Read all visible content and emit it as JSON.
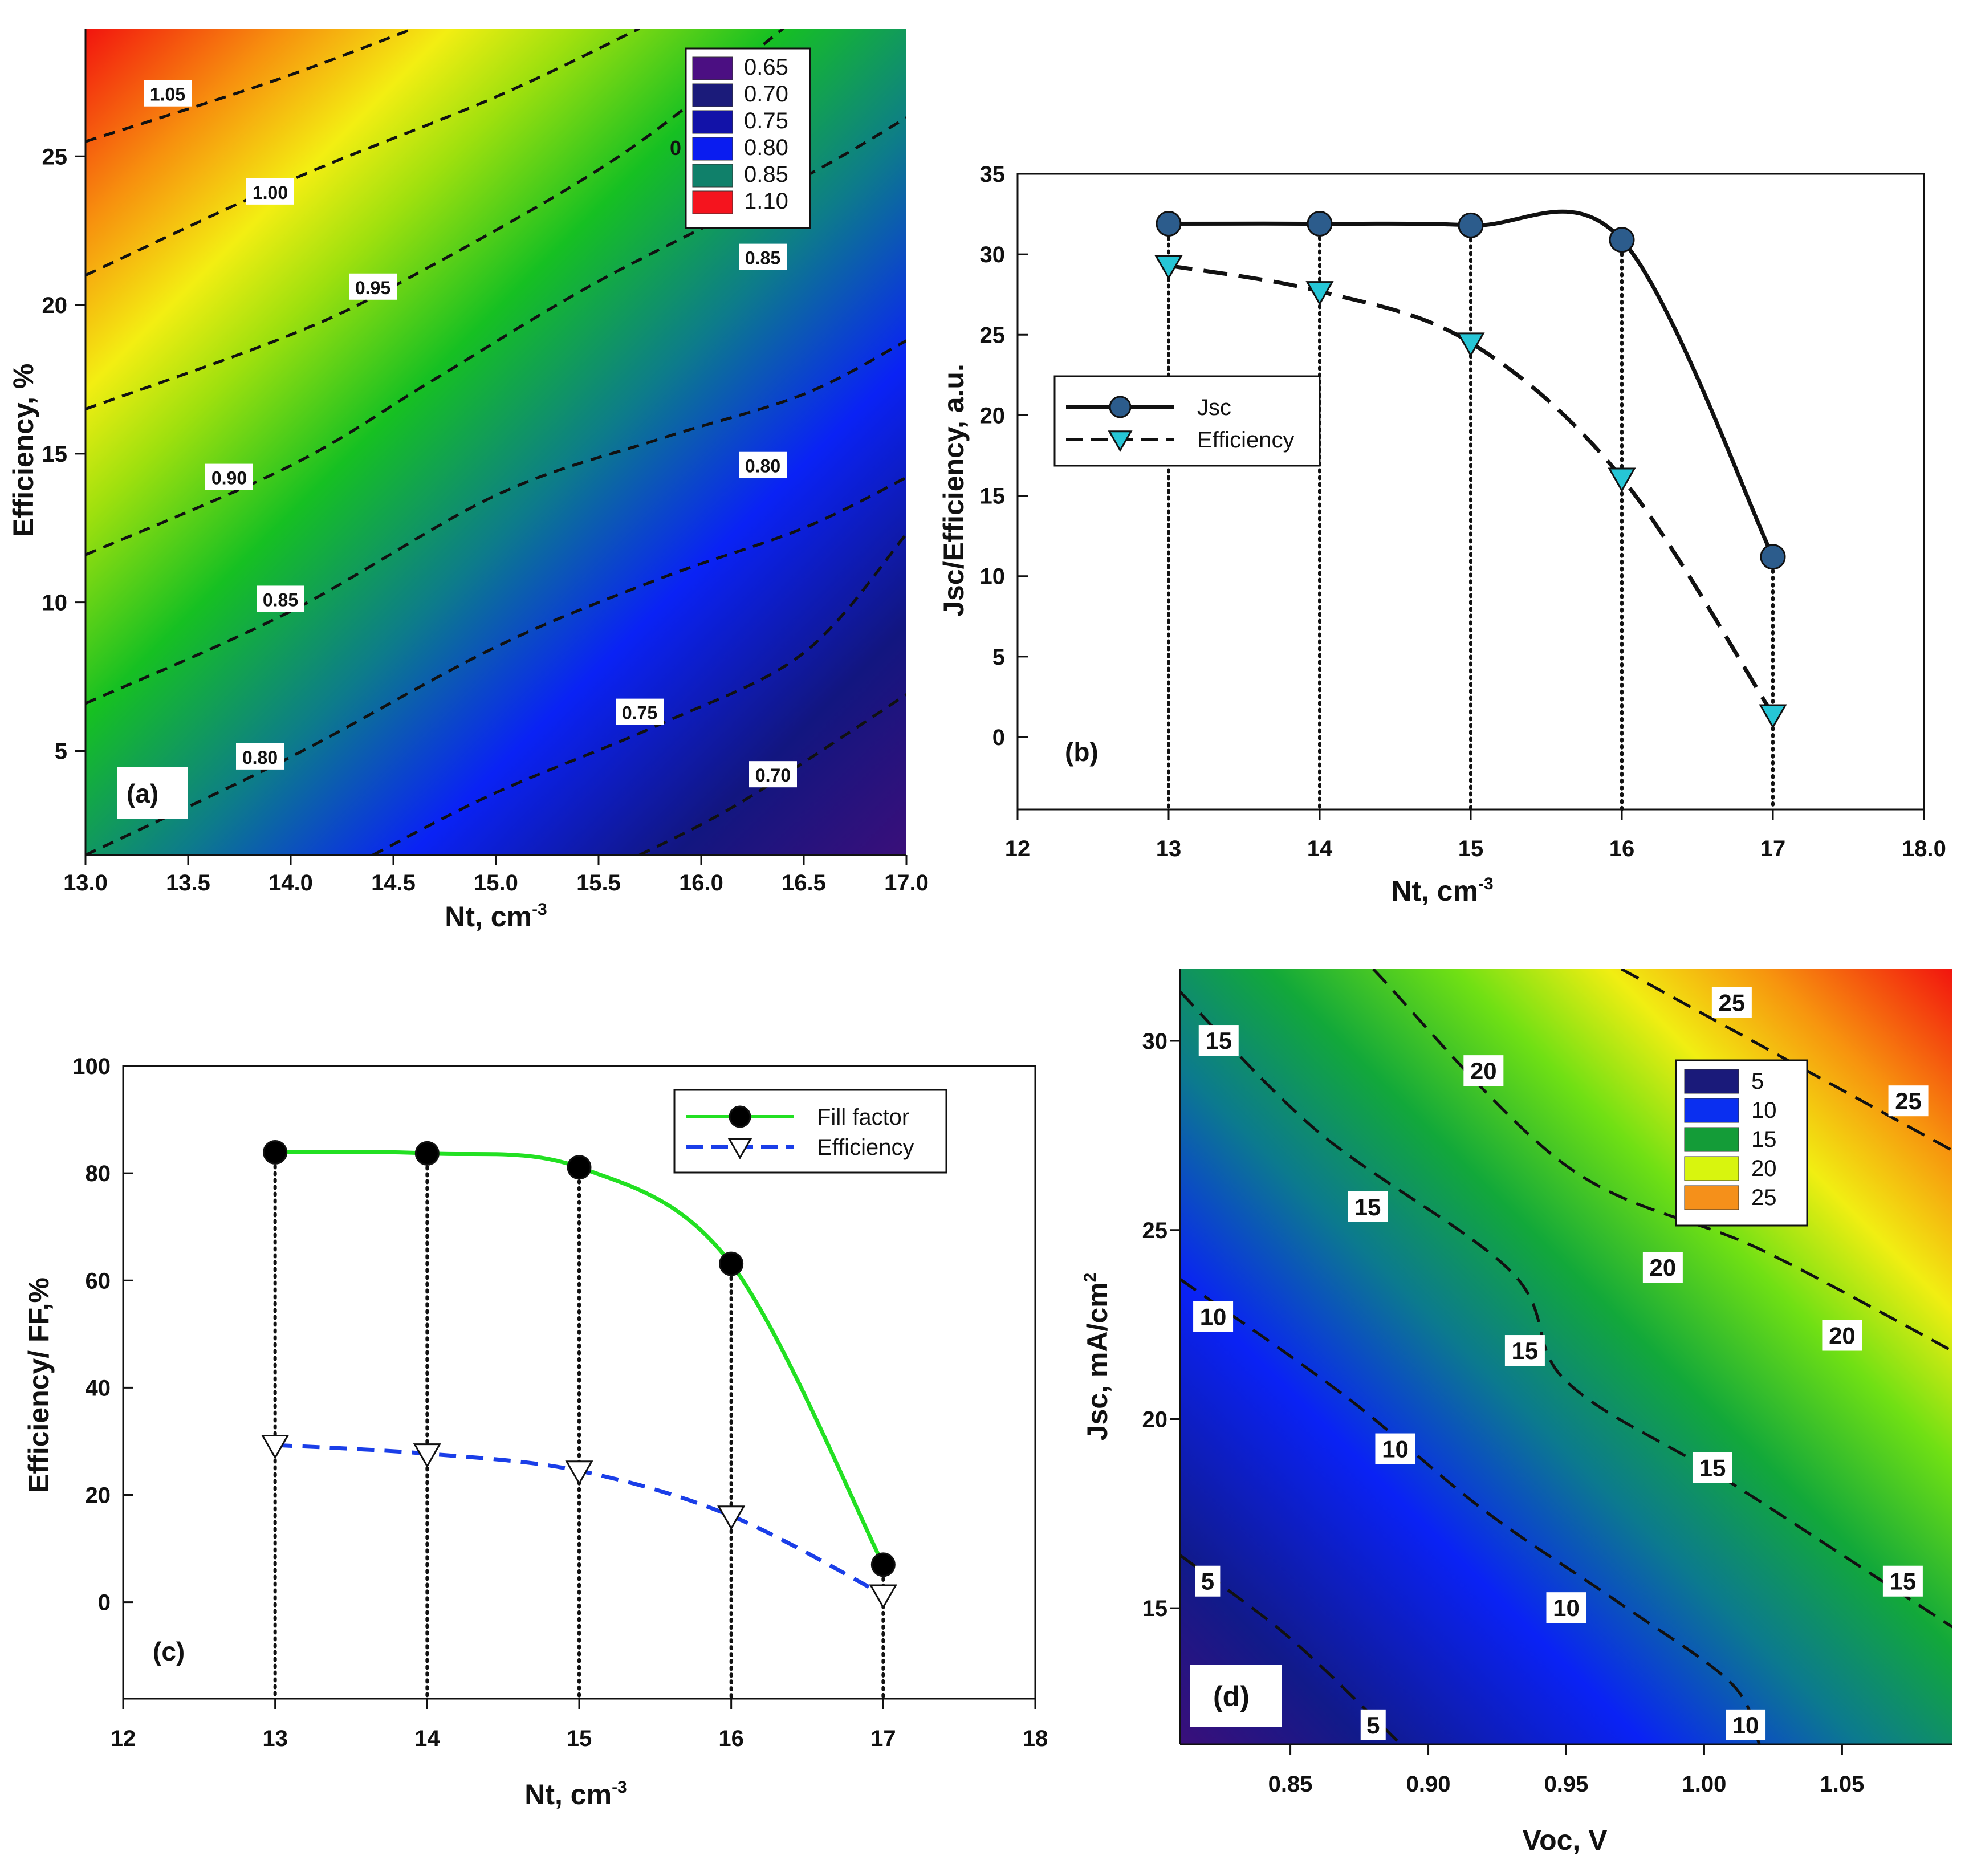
{
  "chart_data": [
    {
      "panel": "a",
      "type": "heatmap",
      "panel_label": "(a)",
      "xlabel": "Nt, cm",
      "xlabel_sup": "-3",
      "ylabel": "Efficiency, %",
      "xlim": [
        13.0,
        17.0
      ],
      "ylim": [
        1.5,
        29.3
      ],
      "xticks": [
        "13.0",
        "13.5",
        "14.0",
        "14.5",
        "15.0",
        "15.5",
        "16.0",
        "16.5",
        "17.0"
      ],
      "yticks": [
        "5",
        "10",
        "15",
        "20",
        "25"
      ],
      "legend": [
        "0.65",
        "0.70",
        "0.75",
        "0.80",
        "0.85",
        "1.10"
      ],
      "legend_colors": [
        "#4b0f82",
        "#1b1b7a",
        "#1212a8",
        "#0a1cf0",
        "#10806a",
        "#f5141e"
      ],
      "stray_label": "0",
      "contours": [
        {
          "level": "1.05",
          "points": [
            [
              13.0,
              25.5
            ],
            [
              13.9,
              27.5
            ],
            [
              14.6,
              29.3
            ]
          ]
        },
        {
          "level": "1.00",
          "points": [
            [
              13.0,
              21.0
            ],
            [
              14.0,
              24.2
            ],
            [
              15.0,
              27.0
            ],
            [
              15.7,
              29.3
            ]
          ]
        },
        {
          "level": "0.95",
          "points": [
            [
              13.0,
              16.5
            ],
            [
              14.0,
              19.0
            ],
            [
              14.6,
              21.0
            ],
            [
              15.6,
              25.0
            ],
            [
              16.4,
              29.3
            ]
          ]
        },
        {
          "level": "0.90",
          "points": [
            [
              13.0,
              11.6
            ],
            [
              14.0,
              14.6
            ],
            [
              14.7,
              17.5
            ],
            [
              15.5,
              20.8
            ],
            [
              16.5,
              24.3
            ],
            [
              17.0,
              26.3
            ]
          ]
        },
        {
          "level": "0.85",
          "points": [
            [
              13.0,
              6.6
            ],
            [
              14.0,
              9.7
            ],
            [
              15.0,
              13.6
            ],
            [
              15.8,
              15.5
            ],
            [
              16.5,
              17.0
            ],
            [
              17.0,
              18.8
            ]
          ]
        },
        {
          "level": "0.80",
          "points": [
            [
              13.0,
              1.5
            ],
            [
              14.0,
              4.8
            ],
            [
              15.0,
              8.5
            ],
            [
              15.8,
              10.8
            ],
            [
              16.5,
              12.5
            ],
            [
              17.0,
              14.2
            ]
          ]
        },
        {
          "level": "0.75",
          "points": [
            [
              14.4,
              1.5
            ],
            [
              15.0,
              3.6
            ],
            [
              15.8,
              5.9
            ],
            [
              16.5,
              8.3
            ],
            [
              17.0,
              12.3
            ]
          ]
        },
        {
          "level": "0.70",
          "points": [
            [
              15.7,
              1.5
            ],
            [
              16.2,
              3.3
            ],
            [
              17.0,
              6.9
            ]
          ]
        }
      ],
      "contour_labels": [
        {
          "text": "1.05",
          "x": 13.4,
          "y": 27.1
        },
        {
          "text": "1.00",
          "x": 13.9,
          "y": 23.8
        },
        {
          "text": "0.95",
          "x": 14.4,
          "y": 20.6
        },
        {
          "text": "0.90",
          "x": 13.7,
          "y": 14.2
        },
        {
          "text": "0.85",
          "x": 13.95,
          "y": 10.1
        },
        {
          "text": "0.80",
          "x": 13.85,
          "y": 4.8
        },
        {
          "text": "0.85",
          "x": 16.3,
          "y": 21.6
        },
        {
          "text": "0.80",
          "x": 16.3,
          "y": 14.6
        },
        {
          "text": "0.75",
          "x": 15.7,
          "y": 6.3
        },
        {
          "text": "0.70",
          "x": 16.35,
          "y": 4.2
        }
      ]
    },
    {
      "panel": "b",
      "type": "line",
      "panel_label": "(b)",
      "xlabel": "Nt, cm",
      "xlabel_sup": "-3",
      "ylabel": "Jsc/Efficiency, a.u.",
      "xlim": [
        12,
        18
      ],
      "ylim": [
        -4.5,
        35
      ],
      "xticks": [
        "12",
        "13",
        "14",
        "15",
        "16",
        "17",
        "18.0"
      ],
      "yticks": [
        "0",
        "5",
        "10",
        "15",
        "20",
        "25",
        "30",
        "35"
      ],
      "x": [
        13,
        14,
        15,
        16,
        17
      ],
      "series": [
        {
          "name": "Jsc",
          "values": [
            31.9,
            31.9,
            31.8,
            30.9,
            11.2
          ],
          "color": "#2c5c8c",
          "line": "solid",
          "marker": "circle"
        },
        {
          "name": "Efficiency",
          "values": [
            29.3,
            27.7,
            24.5,
            16.1,
            1.4
          ],
          "color": "#26c6d6",
          "line": "dashed",
          "marker": "triangle-down"
        }
      ]
    },
    {
      "panel": "c",
      "type": "line",
      "panel_label": "(c)",
      "xlabel": "Nt, cm",
      "xlabel_sup": "-3",
      "ylabel": "Efficiency/ FF,%",
      "xlim": [
        12,
        18
      ],
      "ylim": [
        -18,
        100
      ],
      "xticks": [
        "12",
        "13",
        "14",
        "15",
        "16",
        "17",
        "18"
      ],
      "yticks": [
        "0",
        "20",
        "40",
        "60",
        "80",
        "100"
      ],
      "x": [
        13,
        14,
        15,
        16,
        17
      ],
      "series": [
        {
          "name": "Fill factor",
          "values": [
            83.9,
            83.7,
            81.1,
            63.1,
            7.0
          ],
          "color": "#22e022",
          "line": "solid",
          "marker": "circle"
        },
        {
          "name": "Efficiency",
          "values": [
            29.3,
            27.7,
            24.5,
            16.1,
            1.4
          ],
          "color": "#1a3ee8",
          "line": "dashed",
          "marker": "triangle-down"
        }
      ]
    },
    {
      "panel": "d",
      "type": "heatmap",
      "panel_label": "(d)",
      "xlabel": "Voc, V",
      "ylabel": "Jsc, mA/cm",
      "ylabel_sup": "2",
      "xlim": [
        0.81,
        1.09
      ],
      "ylim": [
        11.4,
        31.9
      ],
      "xticks": [
        "0.85",
        "0.90",
        "0.95",
        "1.00",
        "1.05"
      ],
      "yticks": [
        "15",
        "20",
        "25",
        "30"
      ],
      "legend": [
        "5",
        "10",
        "15",
        "20",
        "25"
      ],
      "legend_colors": [
        "#1a1a7a",
        "#0a2ff0",
        "#149c38",
        "#d8f50e",
        "#f5901a"
      ],
      "contours": [
        {
          "level": "5",
          "points": [
            [
              0.81,
              16.4
            ],
            [
              0.85,
              14.2
            ],
            [
              0.89,
              11.4
            ]
          ]
        },
        {
          "level": "10",
          "points": [
            [
              0.81,
              23.7
            ],
            [
              0.87,
              20.6
            ],
            [
              0.92,
              17.6
            ],
            [
              0.97,
              15.1
            ],
            [
              1.01,
              13.0
            ],
            [
              1.02,
              11.4
            ]
          ]
        },
        {
          "level": "15",
          "points": [
            [
              0.81,
              31.3
            ],
            [
              0.86,
              27.6
            ],
            [
              0.93,
              23.9
            ],
            [
              0.95,
              21.0
            ],
            [
              1.01,
              18.3
            ],
            [
              1.09,
              14.5
            ]
          ]
        },
        {
          "level": "20",
          "points": [
            [
              0.88,
              31.9
            ],
            [
              0.95,
              26.7
            ],
            [
              1.02,
              24.5
            ],
            [
              1.09,
              21.8
            ]
          ]
        },
        {
          "level": "25",
          "points": [
            [
              0.97,
              31.9
            ],
            [
              1.01,
              30.3
            ],
            [
              1.09,
              27.1
            ]
          ]
        }
      ],
      "contour_labels": [
        {
          "text": "15",
          "x": 0.824,
          "y": 30.0
        },
        {
          "text": "15",
          "x": 0.878,
          "y": 25.6
        },
        {
          "text": "15",
          "x": 0.935,
          "y": 21.8
        },
        {
          "text": "15",
          "x": 1.003,
          "y": 18.7
        },
        {
          "text": "15",
          "x": 1.072,
          "y": 15.7
        },
        {
          "text": "10",
          "x": 0.822,
          "y": 22.7
        },
        {
          "text": "10",
          "x": 0.888,
          "y": 19.2
        },
        {
          "text": "10",
          "x": 0.95,
          "y": 15.0
        },
        {
          "text": "10",
          "x": 1.015,
          "y": 11.9
        },
        {
          "text": "5",
          "x": 0.82,
          "y": 15.7
        },
        {
          "text": "5",
          "x": 0.88,
          "y": 11.9
        },
        {
          "text": "20",
          "x": 0.92,
          "y": 29.2
        },
        {
          "text": "20",
          "x": 0.985,
          "y": 24.0
        },
        {
          "text": "20",
          "x": 1.05,
          "y": 22.2
        },
        {
          "text": "25",
          "x": 1.01,
          "y": 31.0
        },
        {
          "text": "25",
          "x": 1.074,
          "y": 28.4
        }
      ]
    }
  ]
}
